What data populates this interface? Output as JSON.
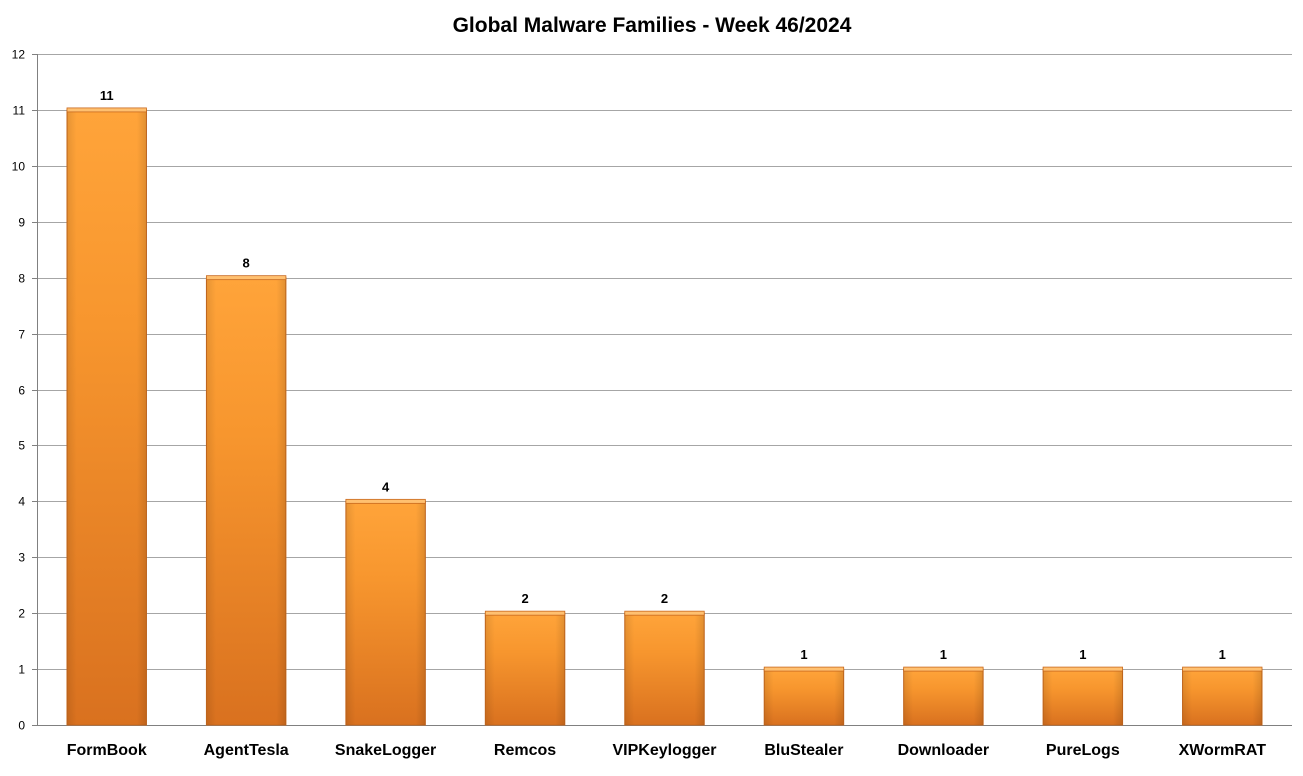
{
  "chart_data": {
    "type": "bar",
    "title": "Global Malware Families - Week 46/2024",
    "xlabel": "",
    "ylabel": "",
    "categories": [
      "FormBook",
      "AgentTesla",
      "SnakeLogger",
      "Remcos",
      "VIPKeylogger",
      "BluStealer",
      "Downloader",
      "PureLogs",
      "XWormRAT"
    ],
    "values": [
      11,
      8,
      4,
      2,
      2,
      1,
      1,
      1,
      1
    ],
    "ylim": [
      0,
      12
    ],
    "yticks": [
      0,
      1,
      2,
      3,
      4,
      5,
      6,
      7,
      8,
      9,
      10,
      11,
      12
    ],
    "grid": true,
    "legend": "none",
    "data_labels": true,
    "colors": {
      "bar_light": "#FFA43A",
      "bar_mid": "#F7962E",
      "bar_dark": "#D9711F",
      "bar_edge": "#C8691E",
      "grid": "#A6A6A6",
      "axis": "#808080"
    }
  }
}
